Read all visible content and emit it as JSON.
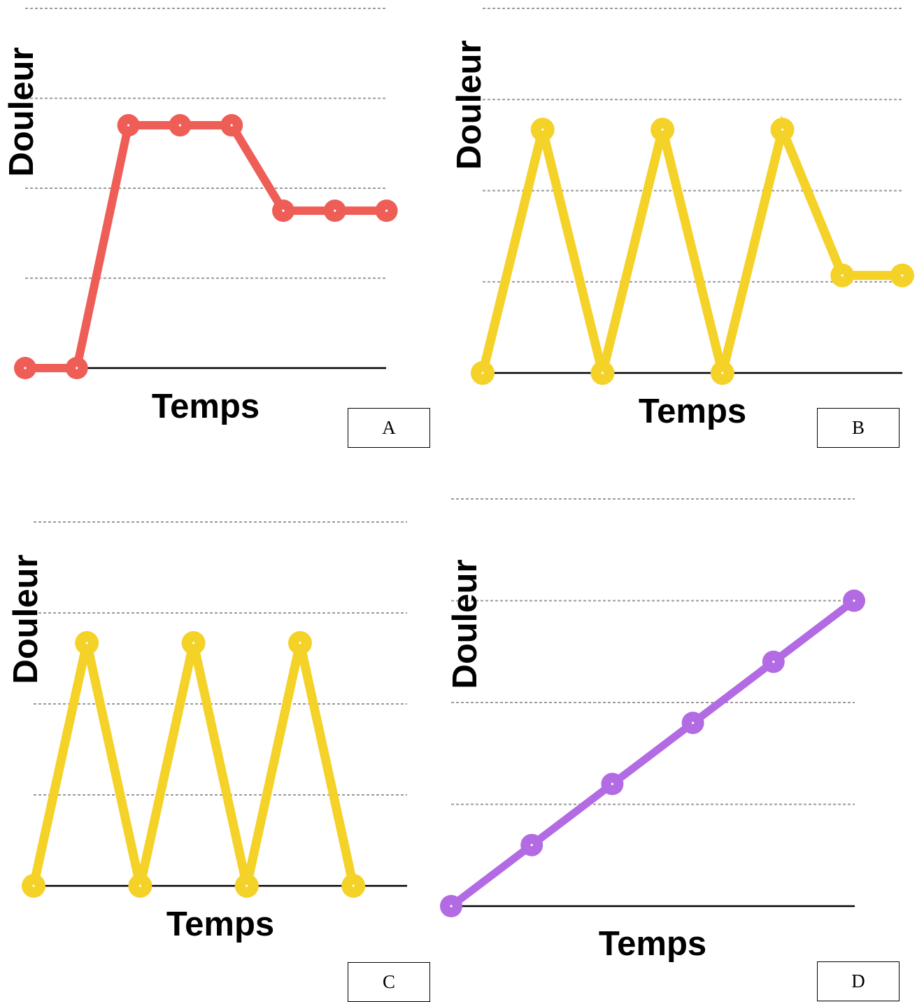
{
  "chart_data": [
    {
      "type": "line",
      "panel_label": "A",
      "xlabel": "Temps",
      "ylabel": "Douleur",
      "color": "#EE5E57",
      "x": [
        0,
        1,
        2,
        3,
        4,
        5,
        6,
        7
      ],
      "y": [
        0,
        0,
        2.7,
        2.7,
        2.7,
        1.75,
        1.75,
        1.75
      ],
      "ylim": [
        0,
        4
      ],
      "grid": true
    },
    {
      "type": "line",
      "panel_label": "B",
      "xlabel": "Temps",
      "ylabel": "Douleur",
      "color": "#F4D228",
      "x": [
        0,
        1,
        2,
        3,
        4,
        5,
        6,
        7
      ],
      "y": [
        0,
        2.67,
        0,
        2.67,
        0,
        2.67,
        1.07,
        1.07
      ],
      "ylim": [
        0,
        4
      ],
      "grid": true
    },
    {
      "type": "line",
      "panel_label": "C",
      "xlabel": "Temps",
      "ylabel": "Douleur",
      "color": "#F4D228",
      "x": [
        0,
        1,
        2,
        3,
        4,
        5,
        6
      ],
      "y": [
        0,
        2.67,
        0,
        2.67,
        0,
        2.67,
        0
      ],
      "ylim": [
        0,
        4
      ],
      "grid": true
    },
    {
      "type": "line",
      "panel_label": "D",
      "xlabel": "Temps",
      "ylabel": "Douleur",
      "color": "#B36BE3",
      "x": [
        0,
        1,
        2,
        3,
        4,
        5
      ],
      "y": [
        0,
        0.6,
        1.2,
        1.8,
        2.4,
        3
      ],
      "ylim": [
        0,
        4
      ],
      "grid": true
    }
  ]
}
